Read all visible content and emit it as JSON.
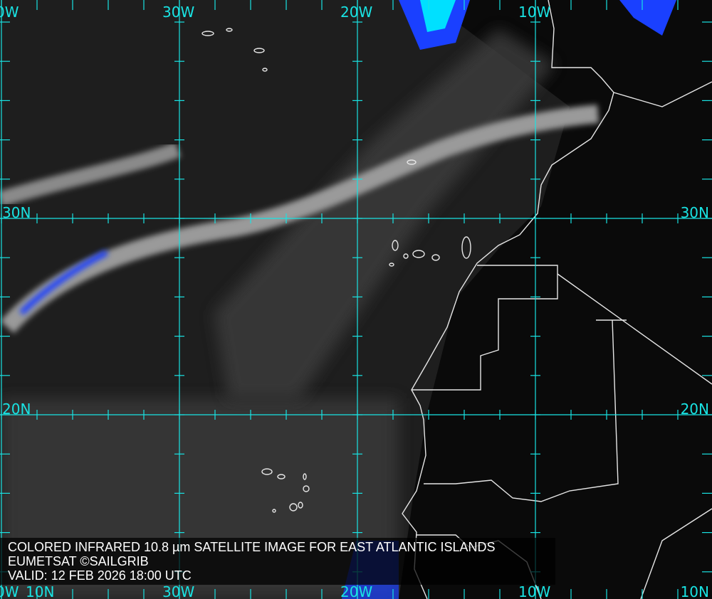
{
  "caption": {
    "title": "COLORED INFRARED 10.8 µm SATELLITE IMAGE FOR EAST ATLANTIC ISLANDS",
    "credit": "EUMETSAT ©SAILGRIB",
    "valid": "VALID:  12 FEB 2026 18:00 UTC"
  },
  "grid": {
    "color": "#19e3e3",
    "top_labels": [
      "0W",
      "30W",
      "20W",
      "10W"
    ],
    "bottom_labels": [
      "0W",
      "30W",
      "20W",
      "10W",
      "10N",
      "10N"
    ],
    "left_labels": [
      "30N",
      "20N"
    ],
    "right_labels": [
      "30N",
      "20N"
    ]
  },
  "colors": {
    "coastline": "#e6e6e6",
    "cold_cloud": "#1a40ff",
    "coldest_cloud": "#00e0ff"
  }
}
